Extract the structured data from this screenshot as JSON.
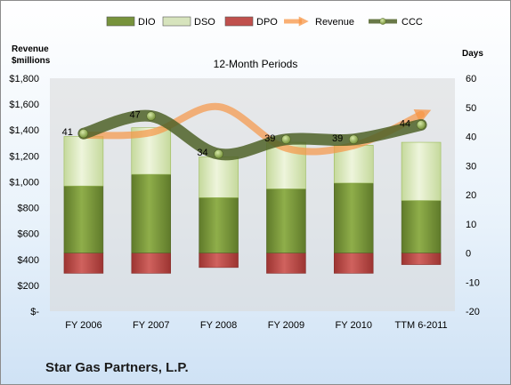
{
  "chart_data": {
    "type": "bar",
    "title": "12-Month Periods",
    "left_axis_title": [
      "Revenue",
      "$millions"
    ],
    "right_axis_title": "Days",
    "categories": [
      "FY 2006",
      "FY 2007",
      "FY 2008",
      "FY 2009",
      "FY 2010",
      "TTM 6-2011"
    ],
    "left_axis": {
      "range": [
        0,
        1800
      ],
      "ticks": [
        "$-",
        "$200",
        "$400",
        "$600",
        "$800",
        "$1,000",
        "$1,200",
        "$1,400",
        "$1,600",
        "$1,800"
      ]
    },
    "right_axis": {
      "range": [
        -20,
        60
      ],
      "ticks": [
        "-20",
        "-10",
        "0",
        "10",
        "20",
        "30",
        "40",
        "50",
        "60"
      ]
    },
    "series": [
      {
        "name": "DIO",
        "kind": "stacked-bar",
        "axis": "right",
        "color": "#77933c",
        "values": [
          23,
          27,
          19,
          22,
          24,
          18
        ]
      },
      {
        "name": "DSO",
        "kind": "stacked-bar",
        "axis": "right",
        "color": "#d7e4bd",
        "values": [
          17,
          16,
          14,
          16,
          13,
          20
        ]
      },
      {
        "name": "DPO",
        "kind": "negative-bar",
        "axis": "right",
        "color": "#c0504d",
        "values": [
          -7,
          -7,
          -5,
          -7,
          -7,
          -4
        ]
      },
      {
        "name": "Revenue",
        "kind": "smoothed-line",
        "axis": "left",
        "color": "#f79646",
        "values": [
          1360,
          1380,
          1580,
          1260,
          1280,
          1520
        ]
      },
      {
        "name": "CCC",
        "kind": "smoothed-line",
        "axis": "right",
        "color": "#4f6228",
        "values": [
          41,
          47,
          34,
          39,
          39,
          44
        ]
      }
    ],
    "ccc_labels": [
      "41",
      "47",
      "34",
      "39",
      "39",
      "44"
    ],
    "legend_position": "top",
    "grid": false
  },
  "company_name": "Star Gas Partners, L.P."
}
